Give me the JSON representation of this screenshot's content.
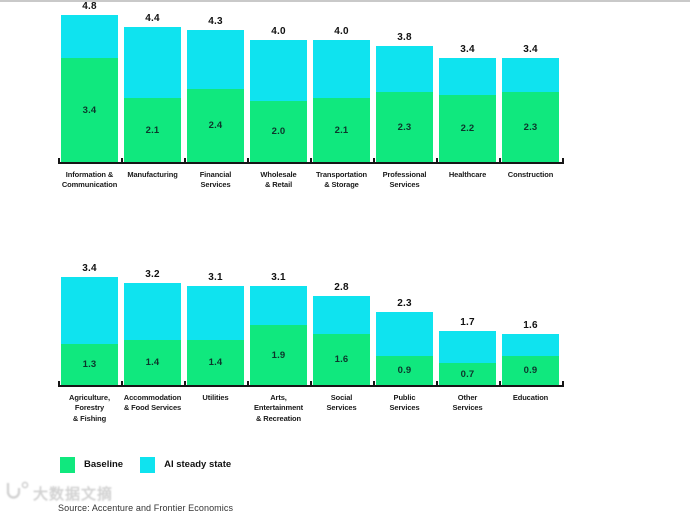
{
  "page": {
    "source": "Source: Accenture and Frontier Economics",
    "watermark": "大数据文摘"
  },
  "legend": {
    "position": "bottom",
    "items": [
      {
        "label": "Baseline",
        "color": "#10e87e"
      },
      {
        "label": "AI steady state",
        "color": "#0fe3ef"
      }
    ]
  },
  "chart_data": [
    {
      "type": "bar",
      "subtype": "overlay",
      "title": "",
      "xlabel": "",
      "ylabel": "",
      "ylim": [
        0,
        4.8
      ],
      "grid": false,
      "value_labels": true,
      "categories": [
        "Information &\nCommunication",
        "Manufacturing",
        "Financial\nServices",
        "Wholesale\n& Retail",
        "Transportation\n& Storage",
        "Professional\nServices",
        "Healthcare",
        "Construction"
      ],
      "series": [
        {
          "name": "Baseline",
          "color": "#10e87e",
          "values": [
            3.4,
            2.1,
            2.4,
            2.0,
            2.1,
            2.3,
            2.2,
            2.3
          ]
        },
        {
          "name": "AI steady state",
          "color": "#0fe3ef",
          "values": [
            4.8,
            4.4,
            4.3,
            4.0,
            4.0,
            3.8,
            3.4,
            3.4
          ]
        }
      ]
    },
    {
      "type": "bar",
      "subtype": "overlay",
      "title": "",
      "xlabel": "",
      "ylabel": "",
      "ylim": [
        0,
        3.4
      ],
      "grid": false,
      "value_labels": true,
      "categories": [
        "Agriculture,\nForestry\n& Fishing",
        "Accommodation\n& Food Services",
        "Utilities",
        "Arts,\nEntertainment\n& Recreation",
        "Social\nServices",
        "Public\nServices",
        "Other\nServices",
        "Education"
      ],
      "series": [
        {
          "name": "Baseline",
          "color": "#10e87e",
          "values": [
            1.3,
            1.4,
            1.4,
            1.9,
            1.6,
            0.9,
            0.7,
            0.9
          ]
        },
        {
          "name": "AI steady state",
          "color": "#0fe3ef",
          "values": [
            3.4,
            3.2,
            3.1,
            3.1,
            2.8,
            2.3,
            1.7,
            1.6
          ]
        }
      ]
    }
  ]
}
